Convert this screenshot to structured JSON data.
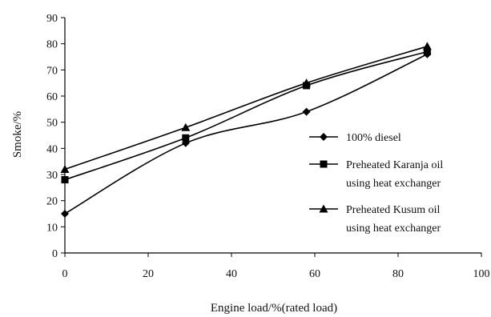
{
  "chart_data": {
    "type": "line",
    "title": "",
    "xlabel": "Engine load/%(rated load)",
    "ylabel": "Smoke/%",
    "xlim": [
      0,
      100
    ],
    "ylim": [
      0,
      90
    ],
    "xticks": [
      "0",
      "20",
      "40",
      "60",
      "80",
      "100"
    ],
    "yticks": [
      "0",
      "10",
      "20",
      "30",
      "40",
      "50",
      "60",
      "70",
      "80",
      "90"
    ],
    "grid": false,
    "legend_position": "right",
    "series": [
      {
        "name": "100% diesel",
        "marker": "diamond",
        "color": "#000000",
        "smooth": true,
        "x": [
          0,
          29,
          58,
          87
        ],
        "values": [
          15,
          42,
          54,
          76
        ]
      },
      {
        "name": "Preheated Karanja oil using heat exchanger",
        "legend_lines": [
          "Preheated Karanja oil",
          "using heat exchanger"
        ],
        "marker": "square",
        "color": "#000000",
        "smooth": true,
        "x": [
          0,
          29,
          58,
          87
        ],
        "values": [
          28,
          44,
          64,
          77
        ]
      },
      {
        "name": "Preheated Kusum oil using heat exchanger",
        "legend_lines": [
          "Preheated Kusum oil",
          "using heat exchanger"
        ],
        "marker": "triangle",
        "color": "#000000",
        "smooth": true,
        "x": [
          0,
          29,
          58,
          87
        ],
        "values": [
          32,
          48,
          65,
          79
        ]
      }
    ]
  }
}
